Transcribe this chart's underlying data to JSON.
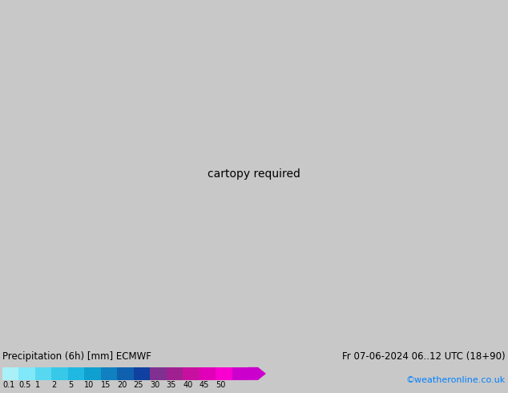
{
  "title_left": "Precipitation (6h) [mm] ECMWF",
  "title_right": "Fr 07-06-2024 06..12 UTC (18+90)",
  "credit": "©weatheronline.co.uk",
  "colorbar_values": [
    0.1,
    0.5,
    1,
    2,
    5,
    10,
    15,
    20,
    25,
    30,
    35,
    40,
    45,
    50
  ],
  "colorbar_colors": [
    "#aaf0f8",
    "#80e8f8",
    "#58d8f0",
    "#38c8e8",
    "#20b8e0",
    "#10a0d0",
    "#1080c0",
    "#1060b0",
    "#1040a0",
    "#803090",
    "#a02090",
    "#c810a0",
    "#e000b8",
    "#f800d0",
    "#cc00cc"
  ],
  "land_color": "#c8e8a0",
  "sea_color": "#d8d8d8",
  "border_color": "#808080",
  "fig_width": 6.34,
  "fig_height": 4.9,
  "dpi": 100,
  "map_extent": [
    -12,
    8,
    34,
    50
  ],
  "colorbar_label_fontsize": 7,
  "title_fontsize": 8.5,
  "credit_fontsize": 8,
  "credit_color": "#0080ff",
  "bottom_bg": "#c8c8c8"
}
